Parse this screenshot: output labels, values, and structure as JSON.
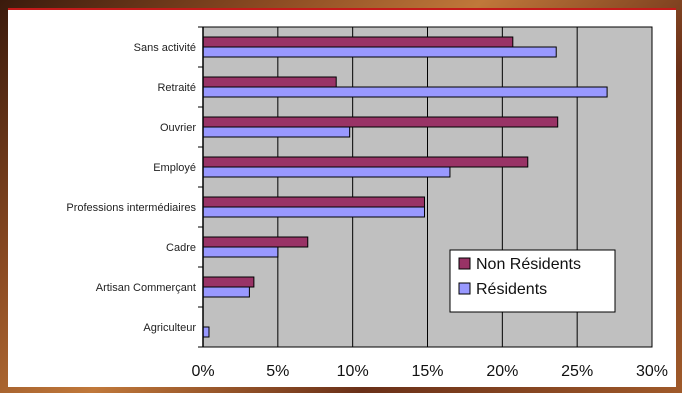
{
  "chart_data": {
    "type": "bar",
    "orientation": "horizontal",
    "categories": [
      "Sans activité",
      "Retraité",
      "Ouvrier",
      "Employé",
      "Professions intermédiaires",
      "Cadre",
      "Artisan Commerçant",
      "Agriculteur"
    ],
    "series": [
      {
        "name": "Non Résidents",
        "color": "#993366",
        "values": [
          20.7,
          8.9,
          23.7,
          21.7,
          14.8,
          7.0,
          3.4,
          0.0
        ]
      },
      {
        "name": "Résidents",
        "color": "#9999ff",
        "values": [
          23.6,
          27.0,
          9.8,
          16.5,
          14.8,
          5.0,
          3.1,
          0.4
        ]
      }
    ],
    "x_ticks": [
      "0%",
      "5%",
      "10%",
      "15%",
      "20%",
      "25%",
      "30%"
    ],
    "xlim": [
      0,
      30
    ],
    "grid": true,
    "legend_position": "bottom-right",
    "plot_background": "#c0c0c0"
  }
}
